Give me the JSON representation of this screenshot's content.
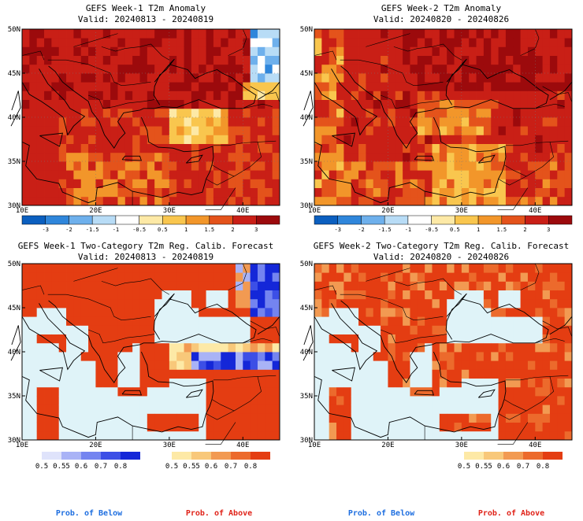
{
  "chart_data": [
    {
      "type": "heatmap",
      "title": "GEFS Week-1 T2m Anomaly",
      "subtitle": "Valid: 20240813 - 20240819",
      "x_ticks": [
        "10E",
        "20E",
        "30E",
        "40E"
      ],
      "y_ticks": [
        "30N",
        "35N",
        "40N",
        "45N",
        "50N"
      ],
      "xlim": [
        10,
        45
      ],
      "ylim": [
        30,
        50
      ],
      "colorbar_ticks": [
        "-3",
        "-2",
        "-1.5",
        "-1",
        "-0.5",
        "0.5",
        "1",
        "1.5",
        "2",
        "3"
      ],
      "colorbar_colors": [
        "#0b5fbf",
        "#2f86db",
        "#6eb0ec",
        "#b8dcf6",
        "#ffffff",
        "#fde9a6",
        "#f9c64e",
        "#f2962a",
        "#e4531b",
        "#c91f16",
        "#9c0a0c"
      ],
      "pattern": "week1_anom"
    },
    {
      "type": "heatmap",
      "title": "GEFS Week-2 T2m Anomaly",
      "subtitle": "Valid: 20240820 - 20240826",
      "x_ticks": [
        "10E",
        "20E",
        "30E",
        "40E"
      ],
      "y_ticks": [
        "30N",
        "35N",
        "40N",
        "45N",
        "50N"
      ],
      "xlim": [
        10,
        45
      ],
      "ylim": [
        30,
        50
      ],
      "colorbar_ticks": [
        "-3",
        "-2",
        "-1.5",
        "-1",
        "-0.5",
        "0.5",
        "1",
        "1.5",
        "2",
        "3"
      ],
      "colorbar_colors": [
        "#0b5fbf",
        "#2f86db",
        "#6eb0ec",
        "#b8dcf6",
        "#ffffff",
        "#fde9a6",
        "#f9c64e",
        "#f2962a",
        "#e4531b",
        "#c91f16",
        "#9c0a0c"
      ],
      "pattern": "week2_anom"
    },
    {
      "type": "heatmap",
      "title": "GEFS Week-1 Two-Category T2m Reg. Calib. Forecast",
      "subtitle": "Valid: 20240813 - 20240819",
      "x_ticks": [
        "10E",
        "20E",
        "30E",
        "40E"
      ],
      "y_ticks": [
        "30N",
        "35N",
        "40N",
        "45N",
        "50N"
      ],
      "xlim": [
        10,
        45
      ],
      "ylim": [
        30,
        50
      ],
      "below_scale": {
        "ticks": [
          "0.5",
          "0.55",
          "0.6",
          "0.7",
          "0.8"
        ],
        "colors": [
          "#dfe3fb",
          "#a9b3f6",
          "#7484f0",
          "#3c4fe6",
          "#1427d8"
        ]
      },
      "above_scale": {
        "ticks": [
          "0.5",
          "0.55",
          "0.6",
          "0.7",
          "0.8"
        ],
        "colors": [
          "#fde9a6",
          "#f8c87a",
          "#f29a52",
          "#ec6a2c",
          "#e43d12"
        ]
      },
      "legend_below": "Prob. of Below",
      "legend_above": "Prob. of Above",
      "pattern": "week1_prob"
    },
    {
      "type": "heatmap",
      "title": "GEFS Week-2 Two-Category T2m Reg. Calib. Forecast",
      "subtitle": "Valid: 20240820 - 20240826",
      "x_ticks": [
        "10E",
        "20E",
        "30E",
        "40E"
      ],
      "y_ticks": [
        "30N",
        "35N",
        "40N",
        "45N",
        "50N"
      ],
      "xlim": [
        10,
        45
      ],
      "ylim": [
        30,
        50
      ],
      "below_scale": {
        "ticks": [],
        "colors": []
      },
      "above_scale": {
        "ticks": [
          "0.5",
          "0.55",
          "0.6",
          "0.7",
          "0.8"
        ],
        "colors": [
          "#fde9a6",
          "#f8c87a",
          "#f29a52",
          "#ec6a2c",
          "#e43d12"
        ]
      },
      "legend_below": "Prob. of Below",
      "legend_above": "Prob. of Above",
      "pattern": "week2_prob"
    }
  ]
}
